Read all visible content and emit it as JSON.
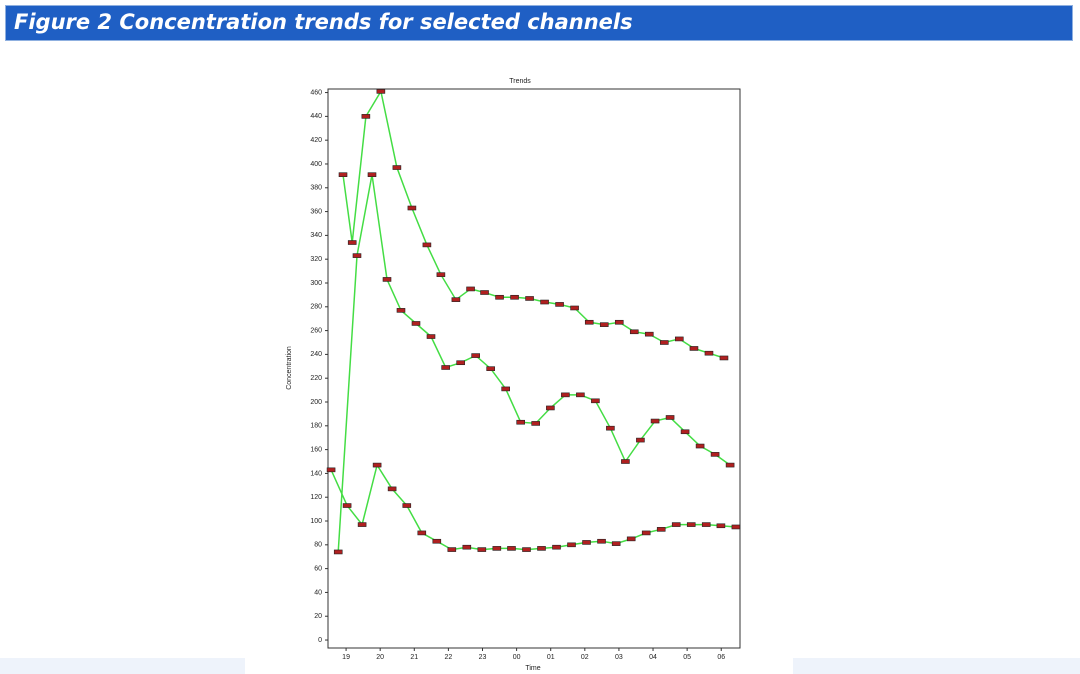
{
  "caption": "Figure 2 Concentration trends for selected channels",
  "chart_data": {
    "type": "line",
    "title": "Trends",
    "x_label": "Time",
    "y_label": "Concentration",
    "xlim": [
      18.47,
      30.55
    ],
    "xticks": [
      19,
      20,
      21,
      22,
      23,
      {
        "value": 24,
        "label": "00"
      },
      {
        "value": 25,
        "label": "01"
      },
      {
        "value": 26,
        "label": "02"
      },
      {
        "value": 27,
        "label": "03"
      },
      {
        "value": 28,
        "label": "04"
      },
      {
        "value": 29,
        "label": "05"
      },
      {
        "value": 30,
        "label": "06"
      }
    ],
    "ylim": [
      -6.7,
      463
    ],
    "yticks": [
      0,
      20,
      40,
      60,
      80,
      100,
      120,
      140,
      160,
      180,
      200,
      220,
      240,
      260,
      280,
      300,
      320,
      340,
      360,
      380,
      400,
      420,
      440,
      460
    ],
    "series": [
      {
        "color": "#44dd44",
        "x": [
          18.91,
          19.18,
          19.58,
          20.02,
          20.49,
          20.93,
          21.37,
          21.78,
          22.22,
          22.65,
          23.06,
          23.5,
          23.94,
          24.38,
          24.82,
          25.26,
          25.7,
          26.13,
          26.57,
          27.01,
          27.45,
          27.89,
          28.33,
          28.77,
          29.2,
          29.64,
          30.08
        ],
        "values": [
          391,
          334,
          440,
          461,
          397,
          363,
          332,
          307,
          286,
          295,
          292,
          288,
          288,
          287,
          284,
          282,
          279,
          267,
          265,
          267,
          259,
          257,
          250,
          253,
          245,
          241,
          237
        ]
      },
      {
        "color": "#44dd44",
        "x": [
          18.77,
          19.32,
          19.76,
          20.2,
          20.61,
          21.05,
          21.49,
          21.92,
          22.36,
          22.8,
          23.24,
          23.68,
          24.12,
          24.56,
          24.99,
          25.43,
          25.87,
          26.31,
          26.75,
          27.19,
          27.63,
          28.06,
          28.5,
          28.94,
          29.38,
          29.82,
          30.26
        ],
        "values": [
          74,
          323,
          391,
          303,
          277,
          266,
          255,
          229,
          233,
          239,
          228,
          211,
          183,
          182,
          195,
          206,
          206,
          201,
          178,
          150,
          168,
          184,
          187,
          175,
          163,
          156,
          147
        ]
      },
      {
        "color": "#44dd44",
        "x": [
          18.56,
          19.03,
          19.47,
          19.91,
          20.35,
          20.78,
          21.22,
          21.66,
          22.1,
          22.54,
          22.98,
          23.42,
          23.85,
          24.29,
          24.73,
          25.17,
          25.61,
          26.05,
          26.49,
          26.92,
          27.36,
          27.8,
          28.24,
          28.68,
          29.12,
          29.56,
          29.99,
          30.43
        ],
        "values": [
          143,
          113,
          97,
          147,
          127,
          113,
          90,
          83,
          76,
          78,
          76,
          77,
          77,
          76,
          77,
          78,
          80,
          82,
          83,
          81,
          85,
          90,
          93,
          97,
          97,
          97,
          96,
          95
        ]
      }
    ],
    "marker_color": "#b02020"
  }
}
